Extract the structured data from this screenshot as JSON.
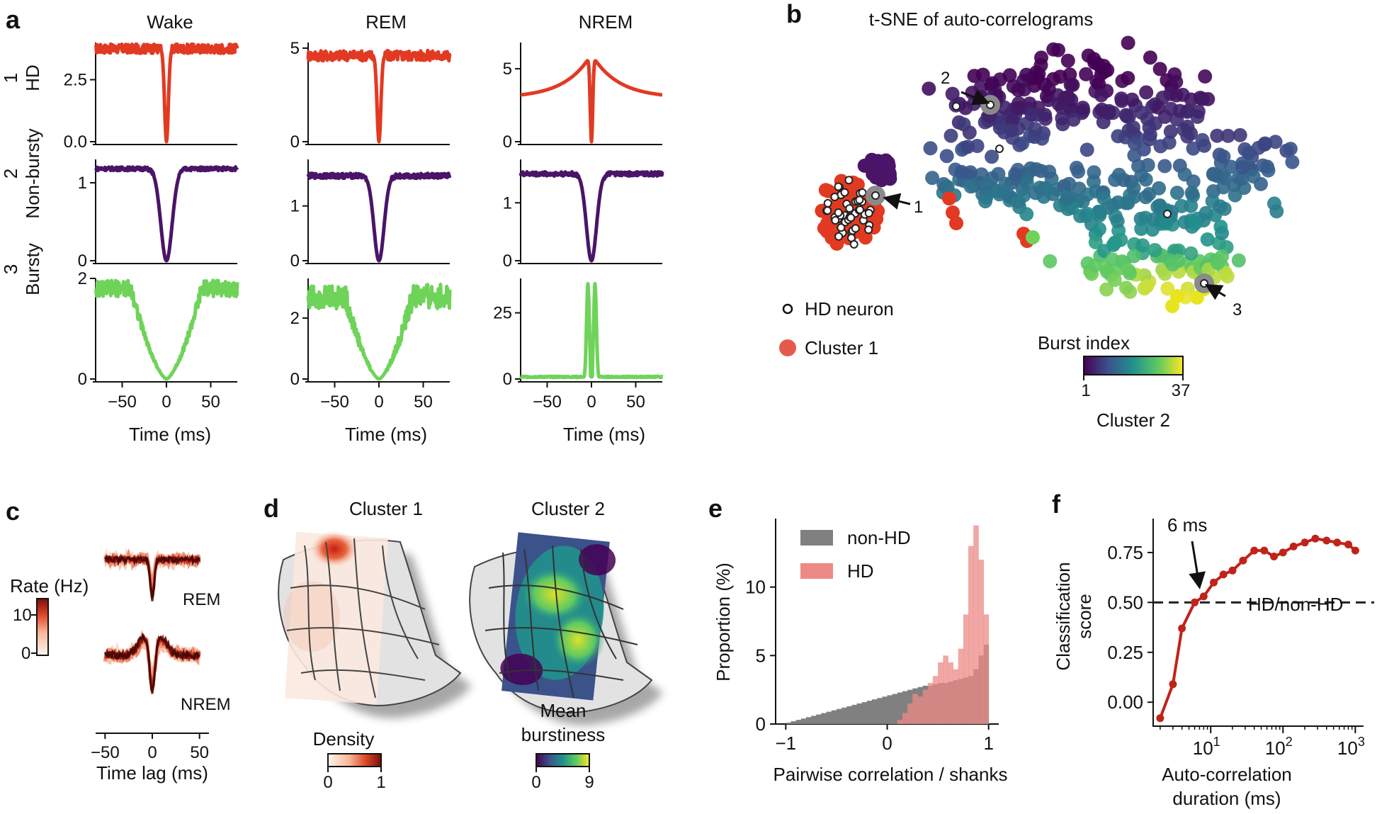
{
  "colors": {
    "hd": "#e23a22",
    "nonbursty": "#4a1468",
    "bursty": "#6fd35a",
    "hist_nonhd": "#808080",
    "hist_hd": "#ec8a86",
    "curve_f": "#c0231a",
    "density_ramp": [
      "#fff4ee",
      "#f6b89a",
      "#e04a2a",
      "#7a0f0b"
    ],
    "viridis": [
      "#440154",
      "#3b528b",
      "#21918c",
      "#5ec962",
      "#fde725"
    ]
  },
  "panels": {
    "a": {
      "label": "a",
      "columns": [
        "Wake",
        "REM",
        "NREM"
      ],
      "rows": [
        {
          "number": "1",
          "name": "HD"
        },
        {
          "number": "2",
          "name": "Non-bursty"
        },
        {
          "number": "3",
          "name": "Bursty"
        }
      ],
      "xlabel": "Time (ms)"
    },
    "b": {
      "label": "b",
      "title": "t-SNE of auto-correlograms",
      "legend_hd": "HD neuron",
      "legend_cluster1": "Cluster 1",
      "colorbar_title": "Burst index",
      "colorbar_min": "1",
      "colorbar_max": "37",
      "colorbar_caption": "Cluster 2",
      "arrow_labels": [
        "1",
        "2",
        "3"
      ]
    },
    "c": {
      "label": "c",
      "ylabel": "Rate (Hz)",
      "rem": "REM",
      "nrem": "NREM",
      "xlabel": "Time lag (ms)",
      "cbar_ticks": [
        "10",
        "0"
      ]
    },
    "d": {
      "label": "d",
      "title1": "Cluster 1",
      "title2": "Cluster 2",
      "cbar1_title": "Density",
      "cbar1_min": "0",
      "cbar1_max": "1",
      "cbar2_title1": "Mean",
      "cbar2_title2": "burstiness",
      "cbar2_min": "0",
      "cbar2_max": "9"
    },
    "e": {
      "label": "e",
      "ylabel": "Proportion (%)",
      "xlabel": "Pairwise correlation / shanks",
      "legend": [
        "non-HD",
        "HD"
      ]
    },
    "f": {
      "label": "f",
      "ylabel1": "Classification",
      "ylabel2": "score",
      "xlabel1": "Auto-correlation",
      "xlabel2": "duration (ms)",
      "annotation": "6 ms",
      "inner_label": "HD/non-HD"
    }
  },
  "chart_data": [
    {
      "type": "line",
      "panel": "a",
      "xlabel": "Time (ms)",
      "x_ticks": [
        -50,
        0,
        50
      ],
      "xlim": [
        -80,
        80
      ],
      "grid": false,
      "subplots": [
        {
          "row": "HD",
          "column": "Wake",
          "color": "#e23a22",
          "ylim": [
            0,
            4.0
          ],
          "y_ticks": [
            "0.0",
            "2.5"
          ],
          "baseline": 3.75,
          "shape": "trough",
          "width_ms": 3,
          "noise": 0.05
        },
        {
          "row": "HD",
          "column": "REM",
          "color": "#e23a22",
          "ylim": [
            0,
            5.3
          ],
          "y_ticks": [
            "0",
            "5"
          ],
          "baseline": 4.6,
          "shape": "trough",
          "width_ms": 3,
          "noise": 0.06
        },
        {
          "row": "HD",
          "column": "NREM",
          "color": "#e23a22",
          "ylim": [
            0,
            6.8
          ],
          "y_ticks": [
            "0",
            "5"
          ],
          "baseline": 3.0,
          "shape": "peaked_trough",
          "peak": 6.0,
          "width_ms": 2,
          "noise": 0.0
        },
        {
          "row": "Non-bursty",
          "column": "Wake",
          "color": "#4a1468",
          "ylim": [
            0,
            1.3
          ],
          "y_ticks": [
            "0",
            "1"
          ],
          "baseline": 1.18,
          "shape": "wide_trough",
          "width_ms": 9,
          "noise": 0.02
        },
        {
          "row": "Non-bursty",
          "column": "REM",
          "color": "#4a1468",
          "ylim": [
            0,
            1.85
          ],
          "y_ticks": [
            "0",
            "1"
          ],
          "baseline": 1.55,
          "shape": "wide_trough",
          "width_ms": 8,
          "noise": 0.03
        },
        {
          "row": "Non-bursty",
          "column": "NREM",
          "color": "#4a1468",
          "ylim": [
            0,
            1.75
          ],
          "y_ticks": [
            "0",
            "1"
          ],
          "baseline": 1.5,
          "shape": "wide_trough",
          "width_ms": 8,
          "noise": 0.025
        },
        {
          "row": "Bursty",
          "column": "Wake",
          "color": "#6fd35a",
          "ylim": [
            0,
            2.0
          ],
          "y_ticks": [
            "0",
            "2"
          ],
          "baseline": 1.8,
          "shape": "v_trough",
          "width_ms": 40,
          "noise": 0.09
        },
        {
          "row": "Bursty",
          "column": "REM",
          "color": "#6fd35a",
          "ylim": [
            0,
            3.3
          ],
          "y_ticks": [
            "0",
            "2"
          ],
          "baseline": 2.7,
          "shape": "v_trough",
          "width_ms": 38,
          "noise": 0.15
        },
        {
          "row": "Bursty",
          "column": "NREM",
          "color": "#6fd35a",
          "ylim": [
            0,
            38
          ],
          "y_ticks": [
            "0",
            "25"
          ],
          "baseline": 0.8,
          "shape": "burst_peak",
          "peak": 36,
          "width_ms": 6,
          "noise": 0.3
        }
      ]
    },
    {
      "type": "scatter",
      "panel": "b",
      "title": "t-SNE of auto-correlograms",
      "colorbar": {
        "title": "Burst index",
        "range": [
          1,
          37
        ]
      },
      "legend": [
        "HD neuron",
        "Cluster 1"
      ],
      "arrows": [
        "1",
        "2",
        "3"
      ],
      "grid": false
    },
    {
      "type": "line",
      "panel": "c",
      "ylabel": "Rate (Hz)",
      "xlabel": "Time lag (ms)",
      "x_ticks": [
        -50,
        0,
        50
      ],
      "xlim": [
        -60,
        60
      ],
      "series": [
        {
          "name": "REM"
        },
        {
          "name": "NREM"
        }
      ],
      "colorbar_range": [
        0,
        10
      ]
    },
    {
      "type": "heatmap",
      "panel": "d",
      "maps": [
        {
          "title": "Cluster 1",
          "colorbar": "Density",
          "range": [
            0,
            1
          ]
        },
        {
          "title": "Cluster 2",
          "colorbar": "Mean burstiness",
          "range": [
            0,
            9
          ]
        }
      ]
    },
    {
      "type": "bar",
      "panel": "e",
      "xlabel": "Pairwise correlation / shanks",
      "ylabel": "Proportion (%)",
      "xlim": [
        -1.1,
        1.1
      ],
      "ylim": [
        0,
        15
      ],
      "x_ticks": [
        -1,
        0,
        1
      ],
      "y_ticks": [
        0,
        5,
        10
      ],
      "bin_width": 0.05,
      "bin_start": -1.0,
      "series": [
        {
          "name": "non-HD",
          "values": [
            0.1,
            0.2,
            0.3,
            0.4,
            0.5,
            0.6,
            0.7,
            0.8,
            0.9,
            1.0,
            1.1,
            1.2,
            1.3,
            1.4,
            1.5,
            1.6,
            1.7,
            1.8,
            1.9,
            2.0,
            2.1,
            2.2,
            2.3,
            2.4,
            2.5,
            2.6,
            2.7,
            2.8,
            2.8,
            2.9,
            3.0,
            3.0,
            3.1,
            3.2,
            3.3,
            3.4,
            3.5,
            4.0,
            5.0,
            5.8
          ]
        },
        {
          "name": "HD",
          "values": [
            0,
            0,
            0,
            0,
            0,
            0,
            0,
            0,
            0,
            0,
            0,
            0,
            0,
            0,
            0,
            0,
            0,
            0,
            0,
            0,
            0,
            0,
            0.3,
            0.8,
            1.5,
            2.2,
            2.0,
            2.5,
            3.0,
            3.5,
            4.5,
            5.0,
            4.5,
            4.0,
            5.5,
            8.0,
            13.0,
            14.5,
            12.0,
            8.0
          ]
        }
      ]
    },
    {
      "type": "line",
      "panel": "f",
      "xlabel": "Auto-correlation duration (ms)",
      "ylabel": "Classification score",
      "x_scale": "log",
      "xlim": [
        1.6,
        1300
      ],
      "ylim": [
        -0.12,
        0.92
      ],
      "y_ticks": [
        "0.00",
        "0.25",
        "0.50",
        "0.75"
      ],
      "x_ticks": [
        "10^1",
        "10^2",
        "10^3"
      ],
      "reference_line": 0.5,
      "annotation": "6 ms",
      "series": [
        {
          "name": "HD/non-HD",
          "x": [
            2,
            3,
            4,
            6,
            8,
            11,
            15,
            20,
            28,
            40,
            55,
            75,
            100,
            140,
            200,
            280,
            400,
            560,
            800,
            1000
          ],
          "y": [
            -0.08,
            0.09,
            0.37,
            0.5,
            0.53,
            0.6,
            0.64,
            0.66,
            0.71,
            0.76,
            0.76,
            0.73,
            0.75,
            0.78,
            0.8,
            0.82,
            0.81,
            0.8,
            0.79,
            0.76
          ]
        }
      ]
    }
  ]
}
